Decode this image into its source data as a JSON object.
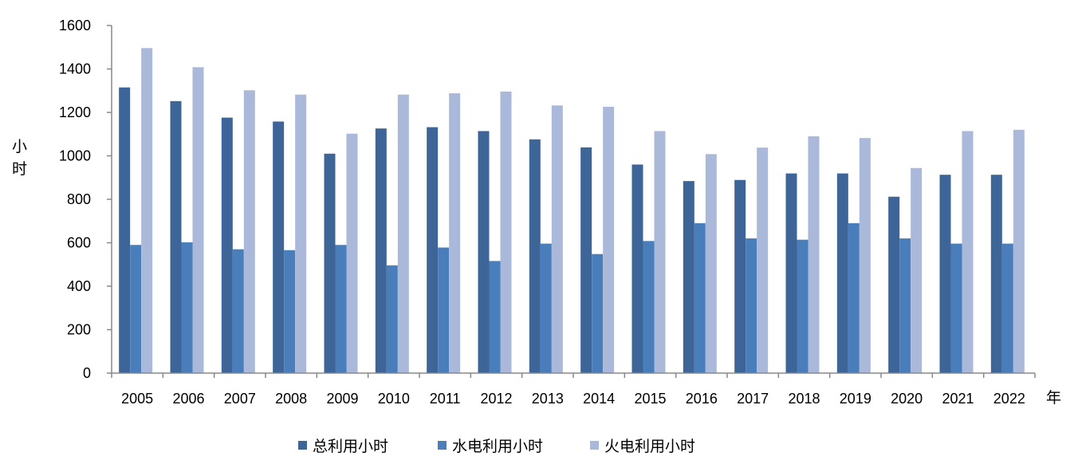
{
  "chart_data": {
    "type": "bar",
    "title": "",
    "xlabel": "年",
    "ylabel": "小\n时",
    "ylim": [
      0,
      1600
    ],
    "yticks": [
      0,
      200,
      400,
      600,
      800,
      1000,
      1200,
      1400,
      1600
    ],
    "grid": false,
    "legend": "bottom",
    "categories": [
      "2005",
      "2006",
      "2007",
      "2008",
      "2009",
      "2010",
      "2011",
      "2012",
      "2013",
      "2014",
      "2015",
      "2016",
      "2017",
      "2018",
      "2019",
      "2020",
      "2021",
      "2022"
    ],
    "series": [
      {
        "name": "总利用小时",
        "color": "#3D6597",
        "values": [
          1315,
          1252,
          1176,
          1158,
          1010,
          1126,
          1132,
          1114,
          1076,
          1039,
          960,
          884,
          889,
          919,
          919,
          812,
          913,
          913
        ]
      },
      {
        "name": "水电利用小时",
        "color": "#4A7EBB",
        "values": [
          590,
          602,
          570,
          566,
          590,
          496,
          578,
          516,
          596,
          548,
          608,
          690,
          620,
          614,
          690,
          620,
          596,
          596
        ]
      },
      {
        "name": "火电利用小时",
        "color": "#AAB9DA",
        "values": [
          1496,
          1408,
          1302,
          1282,
          1102,
          1282,
          1288,
          1296,
          1232,
          1226,
          1114,
          1008,
          1038,
          1090,
          1082,
          944,
          1114,
          1120
        ]
      }
    ]
  }
}
